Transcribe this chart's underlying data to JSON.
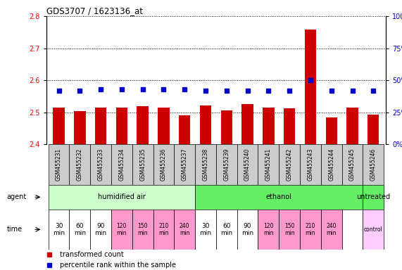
{
  "title": "GDS3707 / 1623136_at",
  "samples": [
    "GSM455231",
    "GSM455232",
    "GSM455233",
    "GSM455234",
    "GSM455235",
    "GSM455236",
    "GSM455237",
    "GSM455238",
    "GSM455239",
    "GSM455240",
    "GSM455241",
    "GSM455242",
    "GSM455243",
    "GSM455244",
    "GSM455245",
    "GSM455246"
  ],
  "red_values": [
    2.514,
    2.503,
    2.514,
    2.514,
    2.519,
    2.516,
    2.491,
    2.521,
    2.507,
    2.525,
    2.514,
    2.513,
    2.758,
    2.484,
    2.514,
    2.494
  ],
  "blue_pct": [
    42,
    42,
    43,
    43,
    43,
    43,
    43,
    42,
    42,
    42,
    42,
    42,
    50,
    42,
    42,
    42
  ],
  "ylim_left": [
    2.4,
    2.8
  ],
  "ylim_right": [
    0,
    100
  ],
  "yticks_left": [
    2.4,
    2.5,
    2.6,
    2.7,
    2.8
  ],
  "yticks_right": [
    0,
    25,
    50,
    75,
    100
  ],
  "bar_color_red": "#cc0000",
  "dot_color_blue": "#0000cc",
  "right_axis_color": "#0000cc",
  "sample_bg_color": "#cccccc",
  "agent_groups": [
    {
      "label": "humidified air",
      "start": 0,
      "end": 7,
      "color": "#ccffcc"
    },
    {
      "label": "ethanol",
      "start": 7,
      "end": 15,
      "color": "#66ee66"
    },
    {
      "label": "untreated",
      "start": 15,
      "end": 16,
      "color": "#66ee66"
    }
  ],
  "time_labels": [
    "30\nmin",
    "60\nmin",
    "90\nmin",
    "120\nmin",
    "150\nmin",
    "210\nmin",
    "240\nmin",
    "30\nmin",
    "60\nmin",
    "90\nmin",
    "120\nmin",
    "150\nmin",
    "210\nmin",
    "240\nmin",
    "",
    "control"
  ],
  "time_pink_indices": [
    3,
    4,
    5,
    6,
    10,
    11,
    12,
    13
  ],
  "time_control_index": 15,
  "legend_red": "transformed count",
  "legend_blue": "percentile rank within the sample"
}
